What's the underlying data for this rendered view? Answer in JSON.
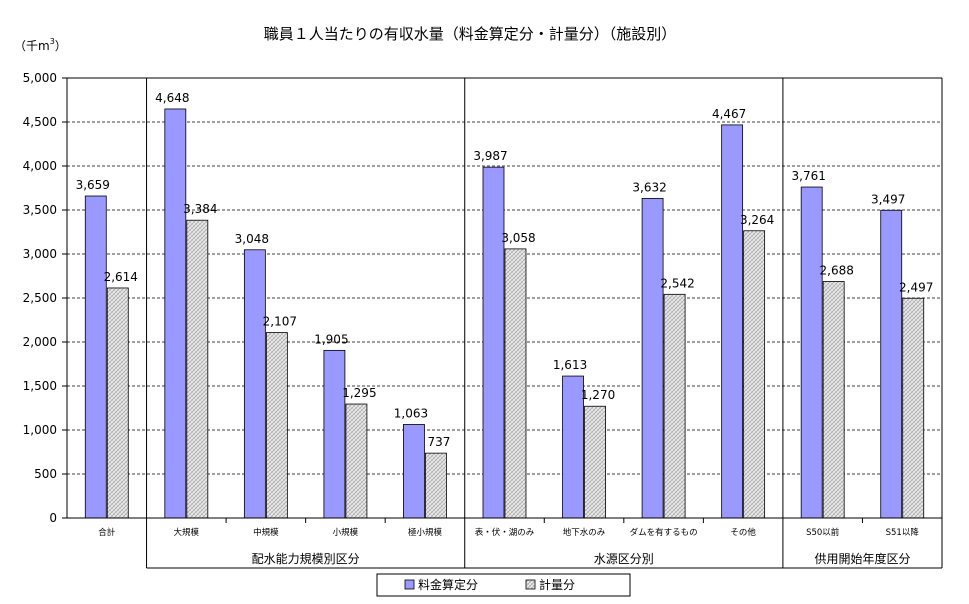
{
  "chart_data": {
    "type": "bar",
    "title": "職員１人当たりの有収水量（料金算定分・計量分）（施設別）",
    "unit_label": "（千m",
    "unit_sup": "3",
    "unit_close": "）",
    "ylim": [
      0,
      5000
    ],
    "ytick_step": 500,
    "ytick_labels": [
      "0",
      "500",
      "1,000",
      "1,500",
      "2,000",
      "2,500",
      "3,000",
      "3,500",
      "4,000",
      "4,500",
      "5,000"
    ],
    "grid": true,
    "legend_position": "bottom-center",
    "categories": [
      "合計",
      "大規模",
      "中規模",
      "小規模",
      "極小規模",
      "表・伏・湖のみ",
      "地下水のみ",
      "ダムを有するもの",
      "その他",
      "S50以前",
      "S51以降"
    ],
    "series": [
      {
        "name": "料金算定分",
        "color": "#9999ff",
        "values": [
          3659,
          4648,
          3048,
          1905,
          1063,
          3987,
          1613,
          3632,
          4467,
          3761,
          3497
        ],
        "labels": [
          "3,659",
          "4,648",
          "3,048",
          "1,905",
          "1,063",
          "3,987",
          "1,613",
          "3,632",
          "4,467",
          "3,761",
          "3,497"
        ]
      },
      {
        "name": "計量分",
        "color": "#d9d9d9",
        "values": [
          2614,
          3384,
          2107,
          1295,
          737,
          3058,
          1270,
          2542,
          3264,
          2688,
          2497
        ],
        "labels": [
          "2,614",
          "3,384",
          "2,107",
          "1,295",
          "737",
          "3,058",
          "1,270",
          "2,542",
          "3,264",
          "2,688",
          "2,497"
        ]
      }
    ],
    "groups": [
      {
        "label": "配水能力規模別区分",
        "start": 1,
        "end": 4
      },
      {
        "label": "水源区分別",
        "start": 5,
        "end": 8
      },
      {
        "label": "供用開始年度区分",
        "start": 9,
        "end": 10
      }
    ]
  }
}
